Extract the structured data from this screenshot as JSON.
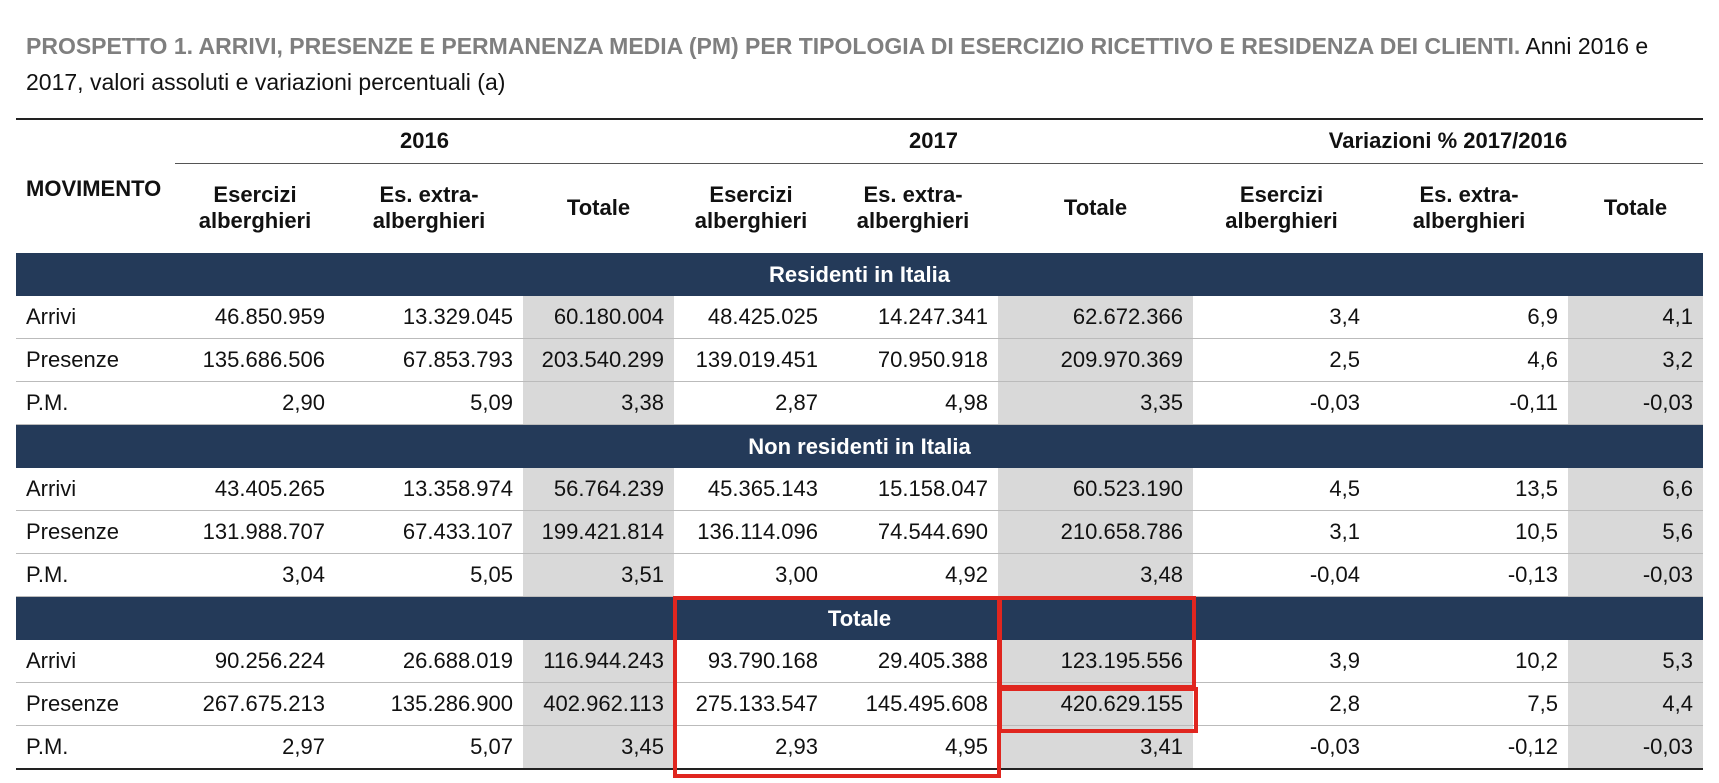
{
  "title": {
    "bold": "PROSPETTO 1. ARRIVI, PRESENZE E PERMANENZA MEDIA (PM) PER TIPOLOGIA DI ESERCIZIO RICETTIVO E RESIDENZA DEI CLIENTI.",
    "normal": "Anni 2016 e 2017, valori assoluti e variazioni percentuali (a)"
  },
  "table": {
    "header": {
      "first": "MOVIMENTO",
      "groups": [
        "2016",
        "2017",
        "Variazioni % 2017/2016"
      ],
      "subheaders": [
        "Esercizi\nalberghieri",
        "Es. extra-\nalberghieri",
        "Totale",
        "Esercizi\nalberghieri",
        "Es. extra-\nalberghieri",
        "Totale",
        "Esercizi\nalberghieri",
        "Es. extra-\nalberghieri",
        "Totale"
      ]
    },
    "sections": [
      {
        "title": "Residenti in Italia",
        "rows": [
          [
            "Arrivi",
            "46.850.959",
            "13.329.045",
            "60.180.004",
            "48.425.025",
            "14.247.341",
            "62.672.366",
            "3,4",
            "6,9",
            "4,1"
          ],
          [
            "Presenze",
            "135.686.506",
            "67.853.793",
            "203.540.299",
            "139.019.451",
            "70.950.918",
            "209.970.369",
            "2,5",
            "4,6",
            "3,2"
          ],
          [
            "P.M.",
            "2,90",
            "5,09",
            "3,38",
            "2,87",
            "4,98",
            "3,35",
            "-0,03",
            "-0,11",
            "-0,03"
          ]
        ]
      },
      {
        "title": "Non residenti in Italia",
        "rows": [
          [
            "Arrivi",
            "43.405.265",
            "13.358.974",
            "56.764.239",
            "45.365.143",
            "15.158.047",
            "60.523.190",
            "4,5",
            "13,5",
            "6,6"
          ],
          [
            "Presenze",
            "131.988.707",
            "67.433.107",
            "199.421.814",
            "136.114.096",
            "74.544.690",
            "210.658.786",
            "3,1",
            "10,5",
            "5,6"
          ],
          [
            "P.M.",
            "3,04",
            "5,05",
            "3,51",
            "3,00",
            "4,92",
            "3,48",
            "-0,04",
            "-0,13",
            "-0,03"
          ]
        ]
      },
      {
        "title": "Totale",
        "rows": [
          [
            "Arrivi",
            "90.256.224",
            "26.688.019",
            "116.944.243",
            "93.790.168",
            "29.405.388",
            "123.195.556",
            "3,9",
            "10,2",
            "5,3"
          ],
          [
            "Presenze",
            "267.675.213",
            "135.286.900",
            "402.962.113",
            "275.133.547",
            "145.495.608",
            "420.629.155",
            "2,8",
            "7,5",
            "4,4"
          ],
          [
            "P.M.",
            "2,97",
            "5,07",
            "3,45",
            "2,93",
            "4,95",
            "3,41",
            "-0,03",
            "-0,12",
            "-0,03"
          ]
        ]
      }
    ]
  }
}
